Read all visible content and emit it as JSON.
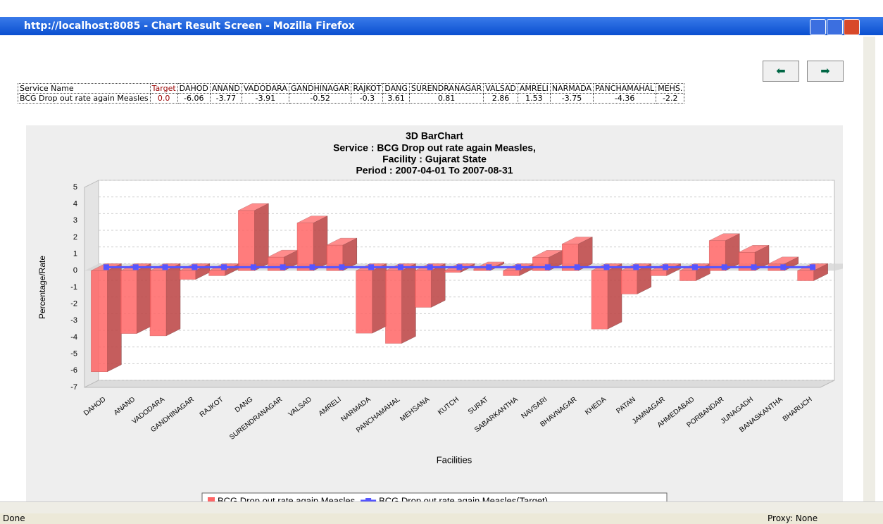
{
  "window": {
    "title": "http://localhost:8085 - Chart Result Screen - Mozilla Firefox"
  },
  "table": {
    "header": [
      "Service Name",
      "Target",
      "DAHOD",
      "ANAND",
      "VADODARA",
      "GANDHINAGAR",
      "RAJKOT",
      "DANG",
      "SURENDRANAGAR",
      "VALSAD",
      "AMRELI",
      "NARMADA",
      "PANCHAMAHAL",
      "MEHS."
    ],
    "rows": [
      [
        "BCG Drop out rate again Measles",
        "0.0",
        "-6.06",
        "-3.77",
        "-3.91",
        "-0.52",
        "-0.3",
        "3.61",
        "0.81",
        "2.86",
        "1.53",
        "-3.75",
        "-4.36",
        "-2.2"
      ]
    ]
  },
  "chart_data": {
    "type": "bar3d",
    "title": "3D BarChart",
    "subtitle": [
      "Service : BCG Drop out rate again Measles,",
      "Facility : Gujarat State",
      "Period : 2007-04-01 To 2007-08-31"
    ],
    "x_label": "Facilities",
    "y_label": "Percentage/Rate",
    "categories": [
      "DAHOD",
      "ANAND",
      "VADODARA",
      "GANDHINAGAR",
      "RAJKOT",
      "DANG",
      "SURENDRANAGAR",
      "VALSAD",
      "AMRELI",
      "NARMADA",
      "PANCHAMAHAL",
      "MEHSANA",
      "KUTCH",
      "SURAT",
      "SABARKANTHA",
      "NAVSARI",
      "BHAVNAGAR",
      "KHEDA",
      "PATAN",
      "JAMNAGAR",
      "AHMEDABAD",
      "PORBANDAR",
      "JUNAGADH",
      "BANASKANTHA",
      "BHARUCH"
    ],
    "series": [
      {
        "name": "BCG Drop out rate again Measles",
        "color": "#ff6666",
        "values": [
          -6.06,
          -3.77,
          -3.91,
          -0.52,
          -0.3,
          3.61,
          0.81,
          2.86,
          1.53,
          -3.75,
          -4.36,
          -2.2,
          -0.1,
          0.1,
          -0.3,
          0.8,
          1.6,
          -3.5,
          -1.4,
          -0.3,
          -0.6,
          1.8,
          1.1,
          0.4,
          -0.6
        ]
      },
      {
        "name": "BCG Drop out rate again Measles(Target)",
        "color": "#5555ff",
        "line": true,
        "values": [
          0,
          0,
          0,
          0,
          0,
          0,
          0,
          0,
          0,
          0,
          0,
          0,
          0,
          0,
          0,
          0,
          0,
          0,
          0,
          0,
          0,
          0,
          0,
          0,
          0
        ]
      }
    ],
    "ylim": [
      -7,
      5
    ],
    "yticks": [
      -7,
      -6,
      -5,
      -4,
      -3,
      -2,
      -1,
      0,
      1,
      2,
      3,
      4,
      5
    ],
    "grid": true
  },
  "status": {
    "left": "Done",
    "right": "Proxy: None"
  }
}
